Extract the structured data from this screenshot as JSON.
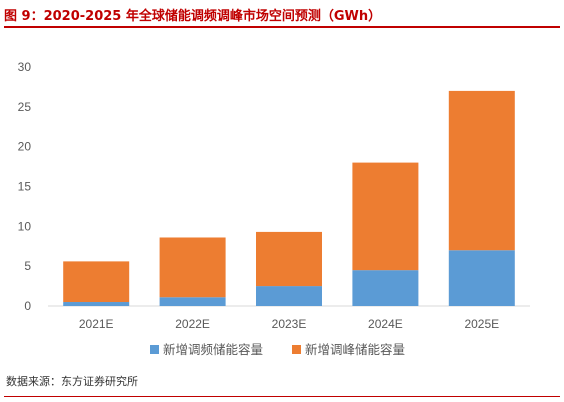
{
  "header": {
    "title": "图 9：2020-2025 年全球储能调频调峰市场空间预测（GWh）"
  },
  "footer": {
    "source": "数据来源：东方证券研究所"
  },
  "colors": {
    "accent": "#c00000",
    "series_blue": "#5b9bd5",
    "series_orange": "#ed7d31",
    "axis": "#d9d9d9",
    "tick_text": "#595959"
  },
  "chart_data": {
    "type": "bar",
    "stacked": true,
    "categories": [
      "2021E",
      "2022E",
      "2023E",
      "2024E",
      "2025E"
    ],
    "series": [
      {
        "name": "新增调频储能容量",
        "color": "#5b9bd5",
        "values": [
          0.5,
          1.1,
          2.5,
          4.5,
          7.0
        ]
      },
      {
        "name": "新增调峰储能容量",
        "color": "#ed7d31",
        "values": [
          5.1,
          7.5,
          6.8,
          13.5,
          20.0
        ]
      }
    ],
    "ylim": [
      0,
      30
    ],
    "yticks": [
      0,
      5,
      10,
      15,
      20,
      25,
      30
    ],
    "grid": false,
    "legend": "bottom"
  }
}
